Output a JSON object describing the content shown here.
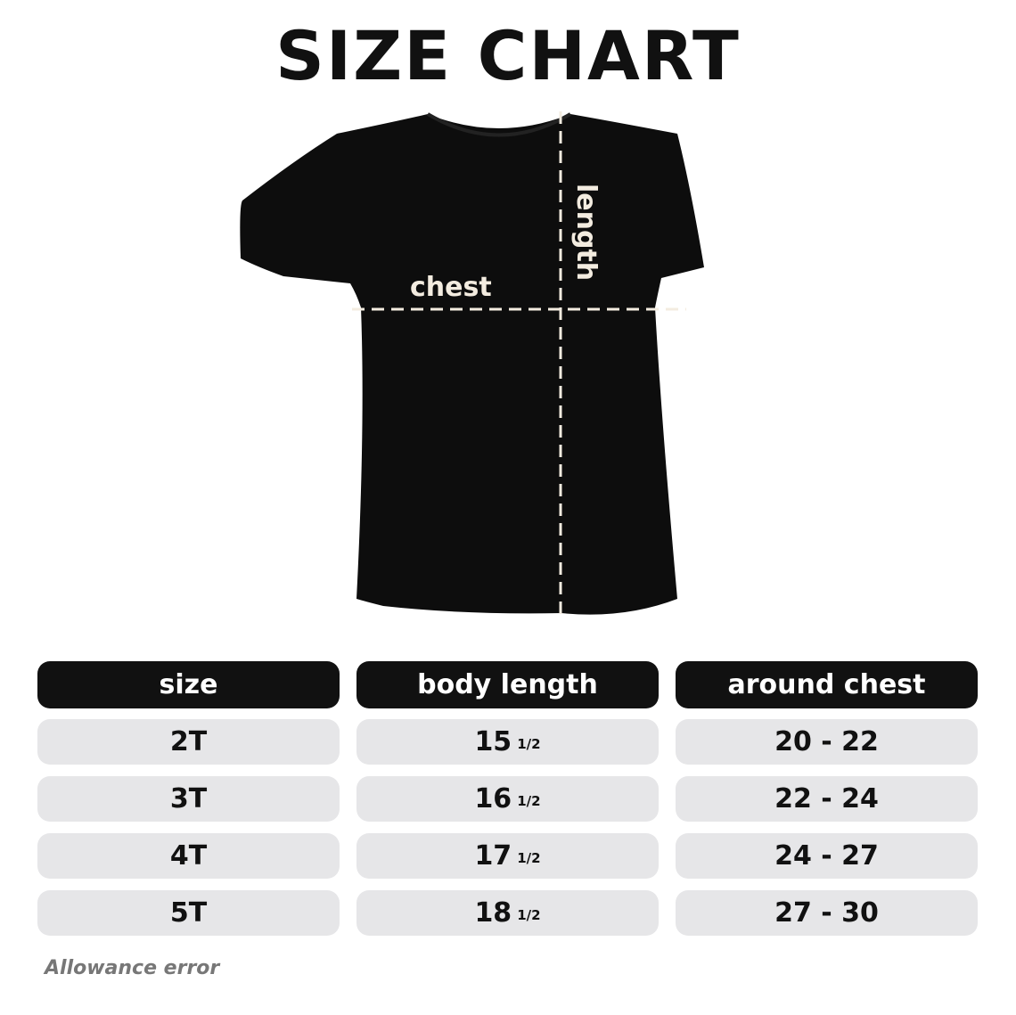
{
  "title": "SIZE CHART",
  "diagram": {
    "chest_label": "chest",
    "length_label": "length",
    "shirt_color": "#0d0d0d",
    "dash_color": "#f3ece0"
  },
  "table": {
    "headers": [
      "size",
      "body length",
      "around chest"
    ],
    "rows": [
      {
        "size": "2T",
        "length": "15",
        "length_frac": "1/2",
        "chest": "20 - 22"
      },
      {
        "size": "3T",
        "length": "16",
        "length_frac": "1/2",
        "chest": "22 - 24"
      },
      {
        "size": "4T",
        "length": "17",
        "length_frac": "1/2",
        "chest": "24 - 27"
      },
      {
        "size": "5T",
        "length": "18",
        "length_frac": "1/2",
        "chest": "27 - 30"
      }
    ]
  },
  "note": "Allowance error"
}
